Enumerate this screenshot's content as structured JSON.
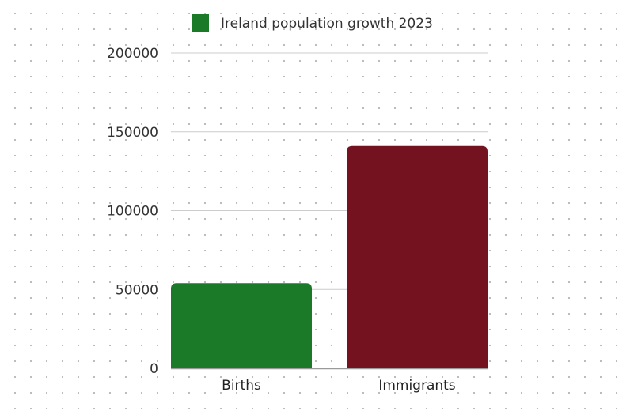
{
  "chart_data": {
    "type": "bar",
    "categories": [
      "Births",
      "Immigrants"
    ],
    "series": [
      {
        "name": "Ireland population growth 2023",
        "values": [
          54000,
          141000
        ]
      }
    ],
    "bar_colors": [
      "#1a7a28",
      "#741220"
    ],
    "legend_color": "#1a7a28",
    "y_ticks": [
      "0",
      "50000",
      "100000",
      "150000",
      "200000"
    ],
    "ylim": [
      0,
      200000
    ],
    "grid": true,
    "legend_position": "top-center"
  }
}
